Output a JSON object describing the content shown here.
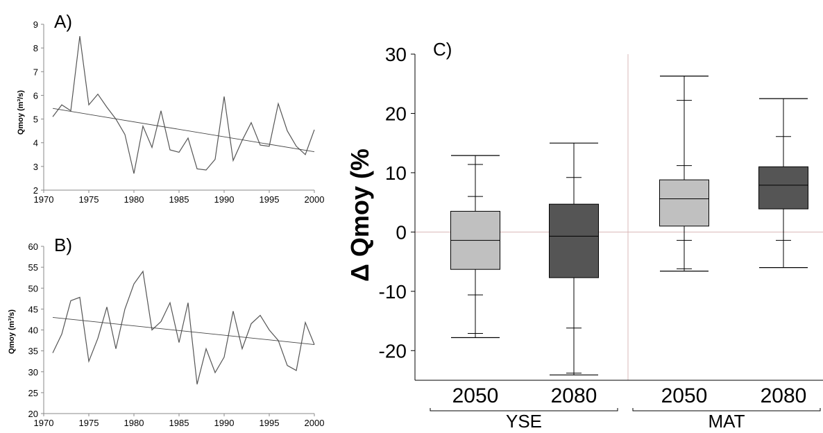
{
  "chart_data": [
    {
      "type": "line",
      "panel_label": "A)",
      "ylabel": "Qmoy (m³/s)",
      "xlim": [
        1970,
        2000
      ],
      "ylim": [
        2,
        9
      ],
      "x_ticks": [
        1970,
        1975,
        1980,
        1985,
        1990,
        1995,
        2000
      ],
      "y_ticks": [
        2,
        3,
        4,
        5,
        6,
        7,
        8,
        9
      ],
      "series": [
        {
          "x": [
            1971,
            1972,
            1973,
            1974,
            1975,
            1976,
            1977,
            1978,
            1979,
            1980,
            1981,
            1982,
            1983,
            1984,
            1985,
            1986,
            1987,
            1988,
            1989,
            1990,
            1991,
            1992,
            1993,
            1994,
            1995,
            1996,
            1997,
            1998,
            1999,
            2000
          ],
          "values": [
            5.1,
            5.6,
            5.35,
            8.5,
            5.6,
            6.05,
            5.5,
            5.0,
            4.35,
            2.7,
            4.7,
            3.8,
            5.35,
            3.7,
            3.6,
            4.2,
            2.9,
            2.85,
            3.3,
            5.95,
            3.25,
            4.1,
            4.85,
            3.9,
            3.85,
            5.65,
            4.5,
            3.85,
            3.5,
            4.55
          ]
        }
      ],
      "trend": {
        "x": [
          1971,
          2000
        ],
        "values": [
          5.45,
          3.62
        ]
      }
    },
    {
      "type": "line",
      "panel_label": "B)",
      "ylabel": "Qmoy (m³/s)",
      "xlim": [
        1970,
        2000
      ],
      "ylim": [
        20,
        60
      ],
      "x_ticks": [
        1970,
        1975,
        1980,
        1985,
        1990,
        1995,
        2000
      ],
      "y_ticks": [
        20,
        25,
        30,
        35,
        40,
        45,
        50,
        55,
        60
      ],
      "series": [
        {
          "x": [
            1971,
            1972,
            1973,
            1974,
            1975,
            1976,
            1977,
            1978,
            1979,
            1980,
            1981,
            1982,
            1983,
            1984,
            1985,
            1986,
            1987,
            1988,
            1989,
            1990,
            1991,
            1992,
            1993,
            1994,
            1995,
            1996,
            1997,
            1998,
            1999,
            2000
          ],
          "values": [
            34.5,
            39.0,
            47.0,
            47.8,
            32.5,
            38.0,
            45.5,
            35.5,
            45.0,
            51.0,
            54.0,
            40.0,
            42.0,
            46.5,
            37.0,
            46.5,
            27.0,
            35.5,
            29.8,
            33.5,
            44.5,
            35.5,
            41.5,
            43.5,
            40.0,
            37.5,
            31.5,
            30.3,
            41.8,
            36.5
          ]
        }
      ],
      "trend": {
        "x": [
          1971,
          2000
        ],
        "values": [
          43.0,
          36.5
        ]
      }
    },
    {
      "type": "box",
      "panel_label": "C)",
      "ylabel": "Δ Qmoy (%",
      "ylim": [
        -25,
        30
      ],
      "y_ticks": [
        -20,
        -10,
        0,
        10,
        20,
        30
      ],
      "groups": [
        "YSE",
        "MAT"
      ],
      "boxes": [
        {
          "group": "YSE",
          "label": "2050",
          "color": "#c0c0c0",
          "min": -17.8,
          "q1": -6.3,
          "median": -1.4,
          "q3": 3.5,
          "max": 12.9,
          "ticks": [
            11.4,
            6.0,
            -10.6,
            -17.1
          ]
        },
        {
          "group": "YSE",
          "label": "2080",
          "color": "#555555",
          "min": -24.1,
          "q1": -7.7,
          "median": -0.7,
          "q3": 4.7,
          "max": 15.0,
          "ticks": [
            9.2,
            -16.2,
            -23.8
          ]
        },
        {
          "group": "MAT",
          "label": "2050",
          "color": "#c0c0c0",
          "min": -6.6,
          "q1": 1.0,
          "median": 5.6,
          "q3": 8.8,
          "max": 26.3,
          "ticks": [
            22.2,
            11.2,
            -1.4,
            -6.2
          ]
        },
        {
          "group": "MAT",
          "label": "2080",
          "color": "#555555",
          "min": -6.0,
          "q1": 3.9,
          "median": 7.9,
          "q3": 11.0,
          "max": 22.5,
          "ticks": [
            16.1,
            -1.4
          ]
        }
      ]
    }
  ]
}
